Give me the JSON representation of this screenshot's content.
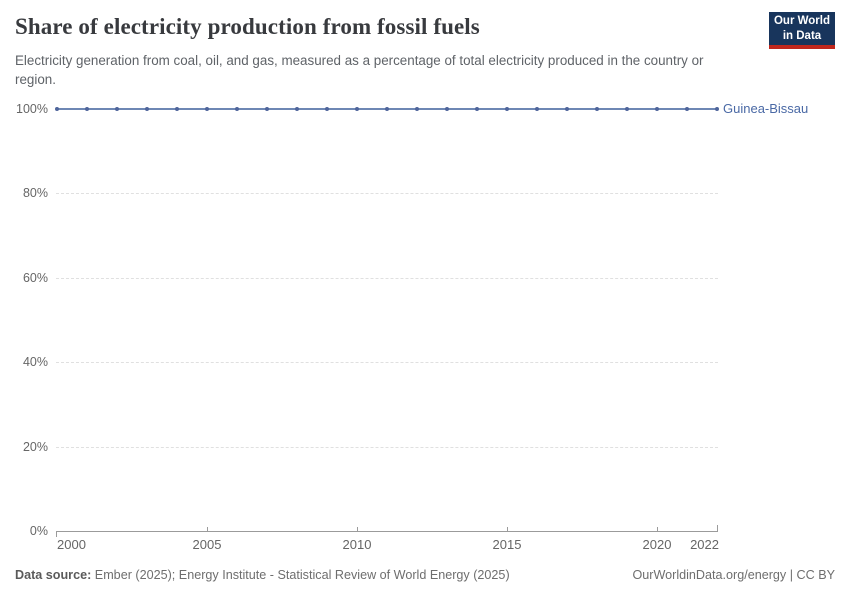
{
  "header": {
    "title": "Share of electricity production from fossil fuels",
    "subtitle": "Electricity generation from coal, oil, and gas, measured as a percentage of total electricity produced in the country or region.",
    "logo": {
      "line1": "Our World",
      "line2": "in Data",
      "bg_color": "#18355c",
      "accent_color": "#c0271d"
    }
  },
  "chart_data": {
    "type": "line",
    "title": "Share of electricity production from fossil fuels",
    "xlabel": "",
    "ylabel": "",
    "x": [
      2000,
      2001,
      2002,
      2003,
      2004,
      2005,
      2006,
      2007,
      2008,
      2009,
      2010,
      2011,
      2012,
      2013,
      2014,
      2015,
      2016,
      2017,
      2018,
      2019,
      2020,
      2021,
      2022
    ],
    "series": [
      {
        "name": "Guinea-Bissau",
        "values": [
          100,
          100,
          100,
          100,
          100,
          100,
          100,
          100,
          100,
          100,
          100,
          100,
          100,
          100,
          100,
          100,
          100,
          100,
          100,
          100,
          100,
          100,
          100
        ],
        "color": "#6e87b4",
        "marker_color": "#4f659b",
        "label_color": "#4a69a5"
      }
    ],
    "ylim": [
      0,
      100
    ],
    "yticks": [
      0,
      20,
      40,
      60,
      80,
      100
    ],
    "ytick_labels": [
      "0%",
      "20%",
      "40%",
      "60%",
      "80%",
      "100%"
    ],
    "xticks": [
      2000,
      2005,
      2010,
      2015,
      2020,
      2022
    ],
    "xtick_labels": [
      "2000",
      "2005",
      "2010",
      "2015",
      "2020",
      "2022"
    ],
    "grid": "horizontal-dashed",
    "legend": "entity-label-at-line-end"
  },
  "footer": {
    "source_label": "Data source:",
    "source_text": " Ember (2025); Energy Institute - Statistical Review of World Energy (2025)",
    "credit": "OurWorldinData.org/energy | CC BY"
  }
}
